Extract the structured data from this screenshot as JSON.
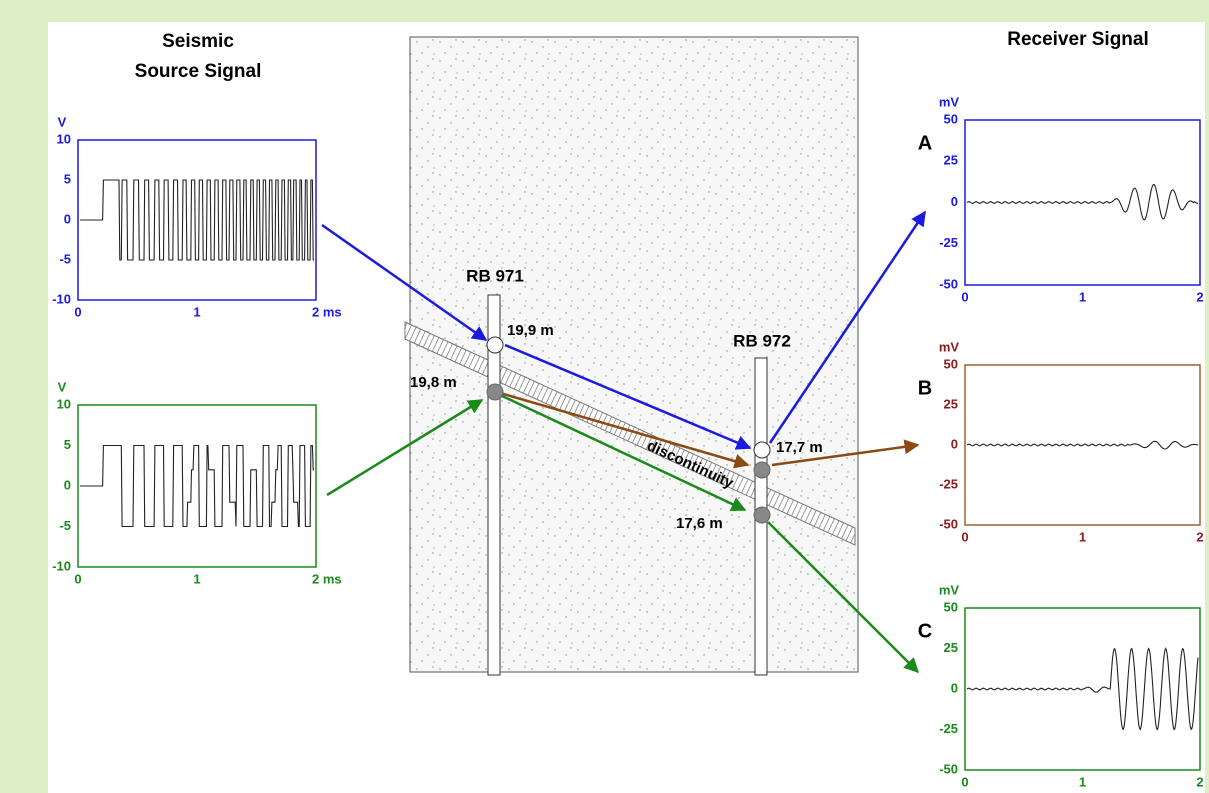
{
  "source_title": [
    "Seismic",
    "Source Signal"
  ],
  "receiver_title": "Receiver Signal",
  "source_plots": [
    {
      "unit": "V",
      "yticks": [
        10,
        5,
        0,
        -5,
        -10
      ],
      "xticks": [
        0,
        1,
        "2 ms"
      ]
    },
    {
      "unit": "V",
      "yticks": [
        10,
        5,
        0,
        -5,
        -10
      ],
      "xticks": [
        0,
        1,
        "2 ms"
      ]
    }
  ],
  "receiver_plots": [
    {
      "label": "A",
      "unit": "mV",
      "yticks": [
        50,
        25,
        0,
        -25,
        -50
      ],
      "xticks": [
        0,
        1,
        2
      ]
    },
    {
      "label": "B",
      "unit": "mV",
      "yticks": [
        50,
        25,
        0,
        -25,
        -50
      ],
      "xticks": [
        0,
        1,
        2
      ]
    },
    {
      "label": "C",
      "unit": "mV",
      "yticks": [
        50,
        25,
        0,
        -25,
        -50
      ],
      "xticks": [
        0,
        1,
        2
      ]
    }
  ],
  "boreholes": [
    "RB 971",
    "RB 972"
  ],
  "depths": [
    "19,9 m",
    "19,8 m",
    "17,7 m",
    "17,6 m"
  ],
  "discontinuity": "discontinuity"
}
